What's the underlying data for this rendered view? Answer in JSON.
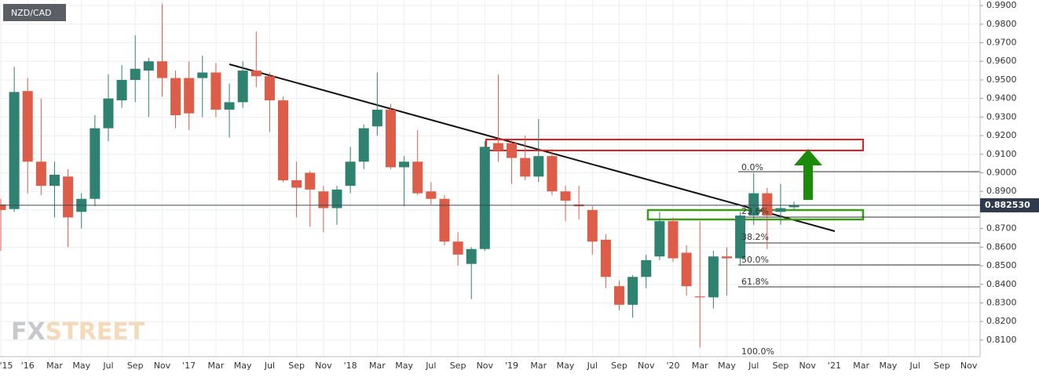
{
  "chart_data": {
    "type": "candlestick",
    "symbol": "NZD/CAD",
    "watermark": {
      "first": "FX",
      "second": "STREET"
    },
    "up_color": "#2f8170",
    "down_color": "#dd5d49",
    "categories": [
      "'15",
      null,
      "'16",
      null,
      "Mar",
      null,
      "May",
      null,
      "Jul",
      null,
      "Sep",
      null,
      "Nov",
      null,
      "'17",
      null,
      "Mar",
      null,
      "May",
      null,
      "Jul",
      null,
      "Sep",
      null,
      "Nov",
      null,
      "'18",
      null,
      "Mar",
      null,
      "May",
      null,
      "Jul",
      null,
      "Sep",
      null,
      "Nov",
      null,
      "'19",
      null,
      "Mar",
      null,
      "May",
      null,
      "Jul",
      null,
      "Sep",
      null,
      "Nov",
      null,
      "'20",
      null,
      "Mar",
      null,
      "May",
      null,
      "Jul",
      null,
      "Sep",
      null,
      "Nov",
      null,
      "'21",
      null,
      "Mar",
      null,
      "May",
      null,
      "Jul",
      null,
      "Sep",
      null,
      "Nov"
    ],
    "open": [
      0.883,
      0.8805,
      0.944,
      0.906,
      0.893,
      0.898,
      0.879,
      0.886,
      0.924,
      0.939,
      0.95,
      0.955,
      0.96,
      0.951,
      0.951,
      0.951,
      0.954,
      0.934,
      0.938,
      0.955,
      0.952,
      0.939,
      0.896,
      0.9,
      0.89,
      0.881,
      0.893,
      0.906,
      0.925,
      0.934,
      0.903,
      0.906,
      0.89,
      0.886,
      0.863,
      0.851,
      0.859,
      0.916,
      0.916,
      0.908,
      0.898,
      0.909,
      0.89,
      0.883,
      0.88,
      0.864,
      0.839,
      0.829,
      0.844,
      0.855,
      0.874,
      0.857,
      0.8335,
      0.833,
      0.855,
      0.854,
      0.877,
      0.889,
      0.879,
      0.8815,
      null,
      null,
      null,
      null,
      null,
      null,
      null,
      null,
      null,
      null,
      null,
      null,
      null
    ],
    "high": [
      0.886,
      0.957,
      0.951,
      0.94,
      0.906,
      0.902,
      0.889,
      0.931,
      0.953,
      0.958,
      0.974,
      0.962,
      0.991,
      0.955,
      0.96,
      0.963,
      0.959,
      0.948,
      0.96,
      0.976,
      0.954,
      0.941,
      0.906,
      0.901,
      0.893,
      0.893,
      0.914,
      0.926,
      0.954,
      0.937,
      0.909,
      0.923,
      0.895,
      0.888,
      0.868,
      0.86,
      0.917,
      0.953,
      0.918,
      0.92,
      0.929,
      0.913,
      0.893,
      0.893,
      0.882,
      0.867,
      0.842,
      0.845,
      0.856,
      0.879,
      0.876,
      0.861,
      0.874,
      0.858,
      0.86,
      0.879,
      0.9,
      0.892,
      0.894,
      0.8845,
      null,
      null,
      null,
      null,
      null,
      null,
      null,
      null,
      null,
      null,
      null,
      null,
      null
    ],
    "low": [
      0.858,
      0.879,
      0.889,
      0.888,
      0.876,
      0.86,
      0.87,
      0.882,
      0.917,
      0.935,
      0.938,
      0.93,
      0.941,
      0.924,
      0.923,
      0.93,
      0.93,
      0.919,
      0.935,
      0.946,
      0.922,
      0.895,
      0.876,
      0.871,
      0.868,
      0.872,
      0.889,
      0.902,
      0.92,
      0.902,
      0.882,
      0.888,
      0.883,
      0.861,
      0.85,
      0.832,
      0.858,
      0.906,
      0.894,
      0.896,
      0.895,
      0.888,
      0.874,
      0.875,
      0.856,
      0.838,
      0.826,
      0.822,
      0.838,
      0.853,
      0.852,
      0.834,
      0.806,
      0.827,
      0.834,
      0.85,
      0.872,
      0.859,
      0.872,
      0.8805,
      null,
      null,
      null,
      null,
      null,
      null,
      null,
      null,
      null,
      null,
      null,
      null,
      null
    ],
    "close": [
      0.88,
      0.9435,
      0.906,
      0.893,
      0.899,
      0.876,
      0.886,
      0.924,
      0.94,
      0.95,
      0.956,
      0.96,
      0.951,
      0.931,
      0.932,
      0.954,
      0.934,
      0.938,
      0.955,
      0.952,
      0.939,
      0.896,
      0.892,
      0.891,
      0.881,
      0.891,
      0.906,
      0.924,
      0.934,
      0.903,
      0.906,
      0.889,
      0.886,
      0.863,
      0.856,
      0.859,
      0.914,
      0.912,
      0.908,
      0.898,
      0.909,
      0.89,
      0.885,
      0.882,
      0.863,
      0.844,
      0.829,
      0.844,
      0.853,
      0.874,
      0.854,
      0.839,
      0.833,
      0.855,
      0.854,
      0.877,
      0.889,
      0.877,
      0.881,
      0.8825,
      null,
      null,
      null,
      null,
      null,
      null,
      null,
      null,
      null,
      null,
      null,
      null,
      null
    ],
    "ylim": [
      0.8011,
      0.993
    ],
    "yticks": [
      {
        "value": 0.81,
        "label": "0.8100"
      },
      {
        "value": 0.82,
        "label": "0.8200"
      },
      {
        "value": 0.83,
        "label": "0.8300"
      },
      {
        "value": 0.84,
        "label": "0.8400"
      },
      {
        "value": 0.85,
        "label": "0.8500"
      },
      {
        "value": 0.86,
        "label": "0.8600"
      },
      {
        "value": 0.87,
        "label": "0.8700"
      },
      {
        "value": 0.88,
        "label": "0.8800"
      },
      {
        "value": 0.89,
        "label": "0.8900"
      },
      {
        "value": 0.9,
        "label": "0.9000"
      },
      {
        "value": 0.91,
        "label": "0.9100"
      },
      {
        "value": 0.92,
        "label": "0.9200"
      },
      {
        "value": 0.93,
        "label": "0.9300"
      },
      {
        "value": 0.94,
        "label": "0.9400"
      },
      {
        "value": 0.95,
        "label": "0.9500"
      },
      {
        "value": 0.96,
        "label": "0.9600"
      },
      {
        "value": 0.97,
        "label": "0.9700"
      },
      {
        "value": 0.98,
        "label": "0.9800"
      },
      {
        "value": 0.99,
        "label": "0.9900"
      }
    ],
    "last_price": {
      "value": 0.88253,
      "label": "0.882530"
    },
    "fib_labels": [
      "0.0%",
      "23.6%",
      "38.2%",
      "50.0%",
      "61.8%",
      "100.0%"
    ],
    "grid": true
  }
}
